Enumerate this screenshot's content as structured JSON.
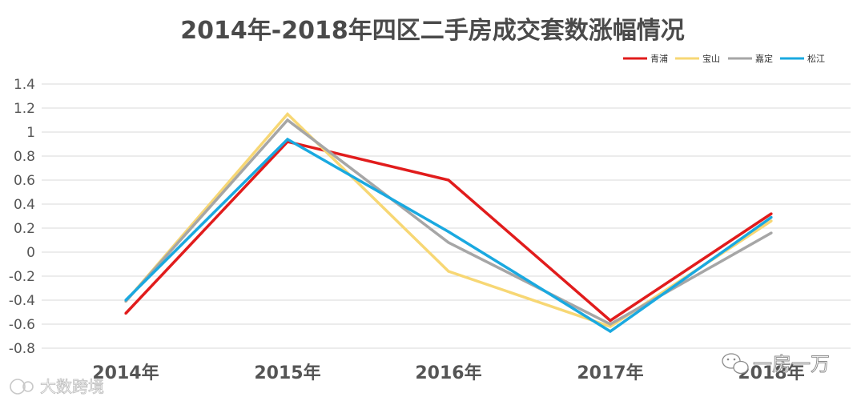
{
  "chart_data": {
    "type": "line",
    "title": "2014年-2018年四区二手房成交套数涨幅情况",
    "categories": [
      "2014年",
      "2015年",
      "2016年",
      "2017年",
      "2018年"
    ],
    "ylim": [
      -0.8,
      1.4
    ],
    "yticks": [
      "1.4",
      "1.2",
      "1",
      "0.8",
      "0.6",
      "0.4",
      "0.2",
      "0",
      "-0.2",
      "-0.4",
      "-0.6",
      "-0.8"
    ],
    "ytick_values": [
      1.4,
      1.2,
      1,
      0.8,
      0.6,
      0.4,
      0.2,
      0,
      -0.2,
      -0.4,
      -0.6,
      -0.8
    ],
    "grid": true,
    "legend_position": "top-right",
    "series": [
      {
        "name": "青浦",
        "color": "#e11c1c",
        "values": [
          -0.51,
          0.92,
          0.6,
          -0.57,
          0.32
        ]
      },
      {
        "name": "宝山",
        "color": "#f7d774",
        "values": [
          -0.41,
          1.15,
          -0.16,
          -0.62,
          0.26
        ]
      },
      {
        "name": "嘉定",
        "color": "#a6a6a6",
        "values": [
          -0.41,
          1.1,
          0.08,
          -0.6,
          0.16
        ]
      },
      {
        "name": "松江",
        "color": "#1aa9e0",
        "values": [
          -0.4,
          0.94,
          0.17,
          -0.66,
          0.29
        ]
      }
    ]
  },
  "watermarks": {
    "left": "大数跨境",
    "right": "一房一万"
  }
}
